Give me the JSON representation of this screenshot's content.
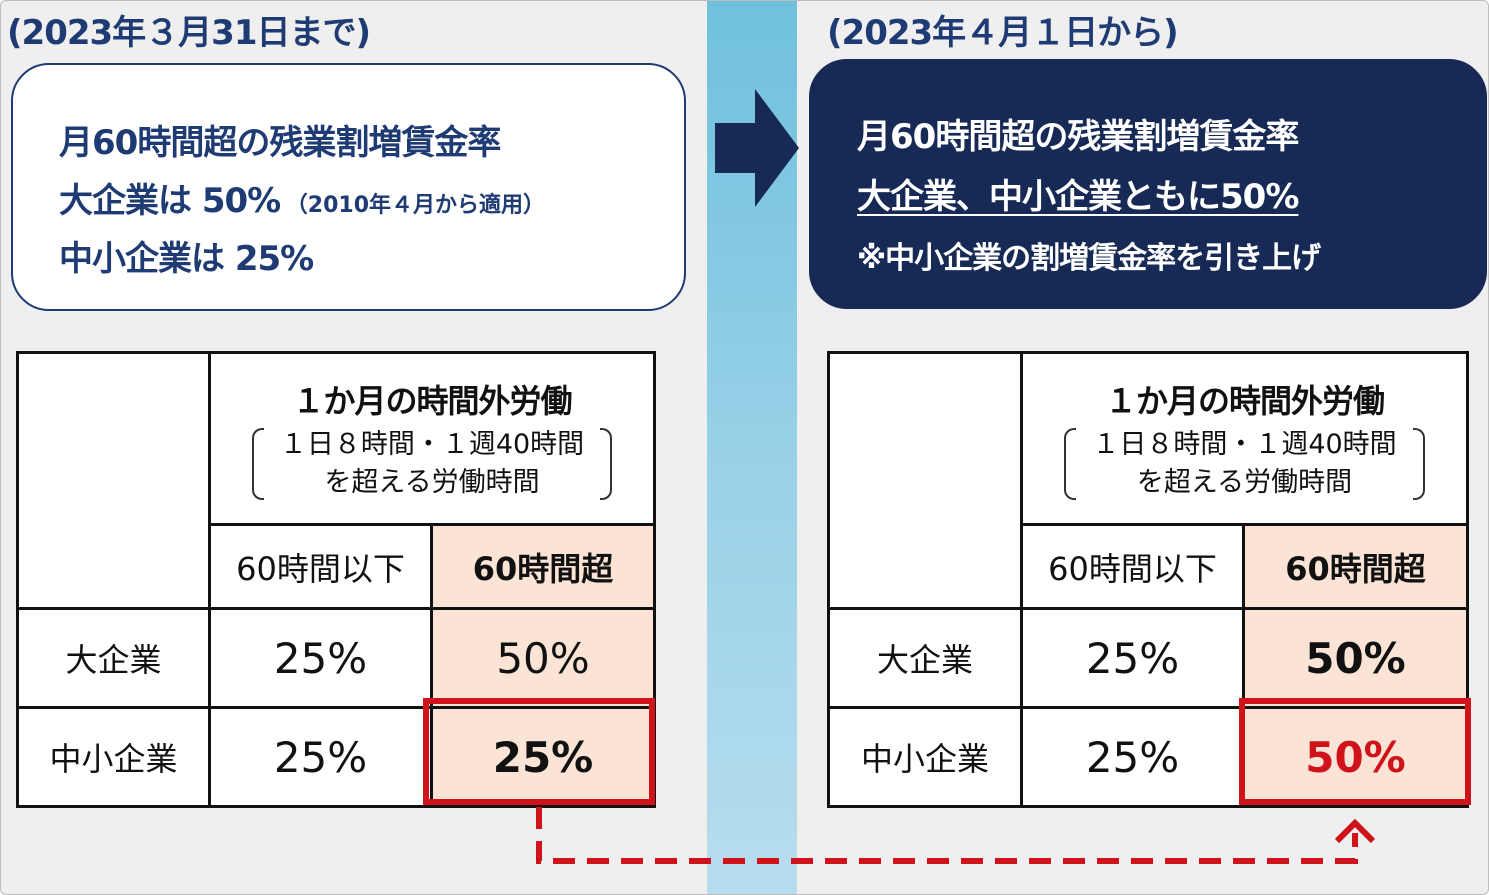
{
  "before": {
    "heading": "(2023年３月31日まで)",
    "box": {
      "line1": "月60時間超の残業割増賃金率",
      "line2_main": "大企業は 50%",
      "line2_note": "（2010年４月から適用）",
      "line3": "中小企業は 25%"
    },
    "table": {
      "header_title": "１か月の時間外労働",
      "header_sub1": "１日８時間・１週40時間",
      "header_sub2": "を超える労働時間",
      "col1": "60時間以下",
      "col2": "60時間超",
      "rows": [
        {
          "label": "大企業",
          "v1": "25%",
          "v2": "50%"
        },
        {
          "label": "中小企業",
          "v1": "25%",
          "v2": "25%"
        }
      ]
    }
  },
  "after": {
    "heading": "(2023年４月１日から)",
    "box": {
      "line1": "月60時間超の残業割増賃金率",
      "line2": "大企業、中小企業ともに50%",
      "line3": "※中小企業の割増賃金率を引き上げ"
    },
    "table": {
      "header_title": "１か月の時間外労働",
      "header_sub1": "１日８時間・１週40時間",
      "header_sub2": "を超える労働時間",
      "col1": "60時間以下",
      "col2": "60時間超",
      "rows": [
        {
          "label": "大企業",
          "v1": "25%",
          "v2": "50%"
        },
        {
          "label": "中小企業",
          "v1": "25%",
          "v2": "50%"
        }
      ]
    }
  },
  "colors": {
    "navy": "#1f3b73",
    "dark_navy": "#172a55",
    "highlight_red": "#d0121b",
    "peach": "#fbe4d5",
    "band_blue": "#7ec6e2"
  },
  "icons": {
    "transition_arrow": "arrow-right-icon",
    "connector_arrow": "dashed-arrow-up-icon"
  }
}
